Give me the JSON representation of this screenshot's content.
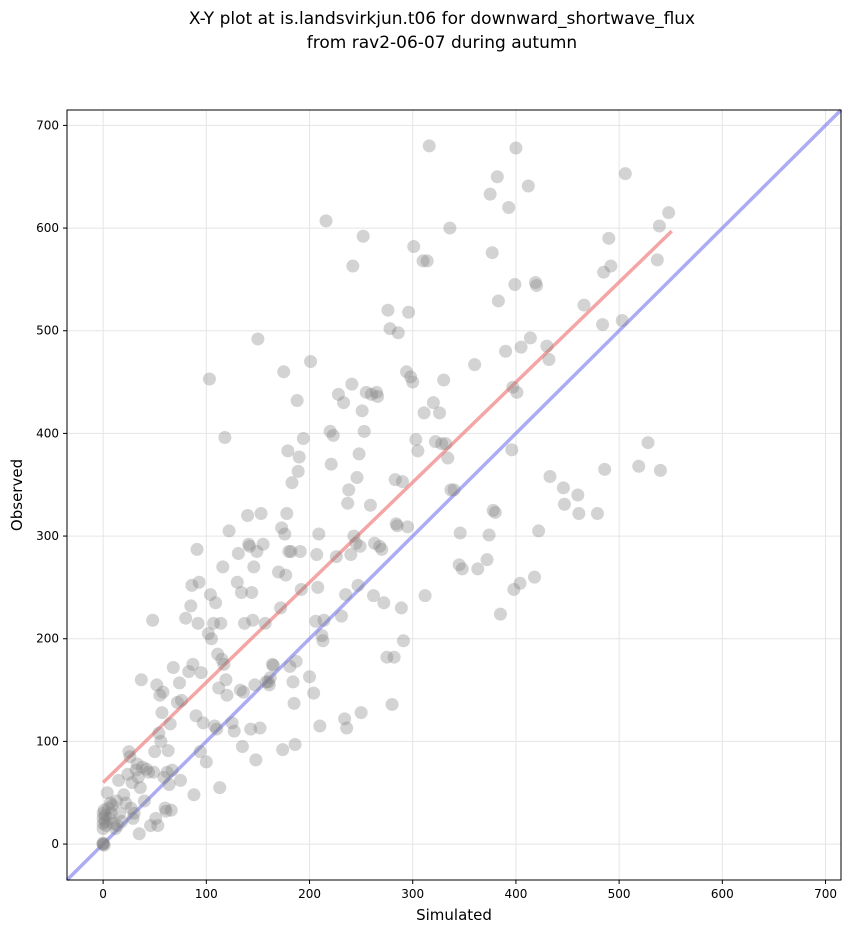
{
  "chart_data": {
    "type": "scatter",
    "title_line1": "X-Y plot at is.landsvirkjun.t06 for downward_shortwave_flux",
    "title_line2": "from rav2-06-07 during autumn",
    "xlabel": "Simulated",
    "ylabel": "Observed",
    "xlim": [
      -35,
      715
    ],
    "ylim": [
      -35,
      715
    ],
    "xticks": [
      0,
      100,
      200,
      300,
      400,
      500,
      600,
      700
    ],
    "yticks": [
      0,
      100,
      200,
      300,
      400,
      500,
      600,
      700
    ],
    "grid": true,
    "colors": {
      "points": "#808080",
      "fit_line": "#f08080",
      "one_to_one_line": "#8080f0"
    },
    "one_to_one_line": {
      "x": [
        -35,
        715
      ],
      "y": [
        -35,
        715
      ]
    },
    "fit_line": {
      "x": [
        0,
        551
      ],
      "y": [
        60,
        597
      ]
    },
    "points": [
      [
        0,
        0
      ],
      [
        0,
        0
      ],
      [
        0,
        1
      ],
      [
        1,
        -1
      ],
      [
        0,
        15
      ],
      [
        0,
        20
      ],
      [
        0,
        25
      ],
      [
        0,
        30
      ],
      [
        1,
        33
      ],
      [
        2,
        22
      ],
      [
        2,
        28
      ],
      [
        3,
        18
      ],
      [
        4,
        50
      ],
      [
        5,
        35
      ],
      [
        6,
        25
      ],
      [
        7,
        40
      ],
      [
        8,
        30
      ],
      [
        9,
        38
      ],
      [
        10,
        20
      ],
      [
        12,
        15
      ],
      [
        13,
        42
      ],
      [
        14,
        18
      ],
      [
        15,
        62
      ],
      [
        16,
        30
      ],
      [
        18,
        22
      ],
      [
        20,
        48
      ],
      [
        22,
        40
      ],
      [
        24,
        68
      ],
      [
        25,
        90
      ],
      [
        26,
        85
      ],
      [
        27,
        35
      ],
      [
        28,
        60
      ],
      [
        29,
        25
      ],
      [
        30,
        30
      ],
      [
        32,
        72
      ],
      [
        33,
        78
      ],
      [
        34,
        65
      ],
      [
        35,
        10
      ],
      [
        36,
        55
      ],
      [
        37,
        160
      ],
      [
        38,
        75
      ],
      [
        40,
        42
      ],
      [
        42,
        73
      ],
      [
        44,
        70
      ],
      [
        46,
        18
      ],
      [
        48,
        218
      ],
      [
        49,
        70
      ],
      [
        50,
        90
      ],
      [
        51,
        25
      ],
      [
        52,
        155
      ],
      [
        53,
        18
      ],
      [
        54,
        108
      ],
      [
        55,
        145
      ],
      [
        56,
        100
      ],
      [
        57,
        128
      ],
      [
        58,
        148
      ],
      [
        59,
        65
      ],
      [
        60,
        35
      ],
      [
        61,
        32
      ],
      [
        62,
        70
      ],
      [
        63,
        91
      ],
      [
        64,
        58
      ],
      [
        65,
        117
      ],
      [
        66,
        33
      ],
      [
        67,
        72
      ],
      [
        68,
        172
      ],
      [
        72,
        138
      ],
      [
        74,
        157
      ],
      [
        75,
        62
      ],
      [
        76,
        140
      ],
      [
        80,
        220
      ],
      [
        83,
        168
      ],
      [
        85,
        232
      ],
      [
        86,
        252
      ],
      [
        87,
        175
      ],
      [
        88,
        48
      ],
      [
        90,
        125
      ],
      [
        91,
        287
      ],
      [
        92,
        215
      ],
      [
        93,
        255
      ],
      [
        94,
        90
      ],
      [
        95,
        167
      ],
      [
        97,
        118
      ],
      [
        100,
        80
      ],
      [
        102,
        205
      ],
      [
        103,
        453
      ],
      [
        104,
        243
      ],
      [
        105,
        200
      ],
      [
        107,
        215
      ],
      [
        108,
        115
      ],
      [
        109,
        235
      ],
      [
        110,
        112
      ],
      [
        111,
        185
      ],
      [
        112,
        152
      ],
      [
        113,
        55
      ],
      [
        114,
        215
      ],
      [
        115,
        180
      ],
      [
        116,
        270
      ],
      [
        117,
        175
      ],
      [
        118,
        396
      ],
      [
        119,
        160
      ],
      [
        120,
        145
      ],
      [
        122,
        305
      ],
      [
        125,
        118
      ],
      [
        127,
        110
      ],
      [
        130,
        255
      ],
      [
        131,
        283
      ],
      [
        133,
        150
      ],
      [
        134,
        245
      ],
      [
        135,
        95
      ],
      [
        136,
        148
      ],
      [
        137,
        215
      ],
      [
        140,
        320
      ],
      [
        141,
        292
      ],
      [
        142,
        290
      ],
      [
        143,
        112
      ],
      [
        144,
        245
      ],
      [
        145,
        218
      ],
      [
        146,
        270
      ],
      [
        147,
        155
      ],
      [
        148,
        82
      ],
      [
        149,
        285
      ],
      [
        150,
        492
      ],
      [
        152,
        113
      ],
      [
        153,
        322
      ],
      [
        155,
        292
      ],
      [
        157,
        215
      ],
      [
        158,
        158
      ],
      [
        160,
        158
      ],
      [
        161,
        155
      ],
      [
        162,
        162
      ],
      [
        164,
        175
      ],
      [
        165,
        174
      ],
      [
        170,
        265
      ],
      [
        172,
        230
      ],
      [
        173,
        308
      ],
      [
        174,
        92
      ],
      [
        175,
        460
      ],
      [
        176,
        302
      ],
      [
        177,
        262
      ],
      [
        178,
        322
      ],
      [
        179,
        383
      ],
      [
        180,
        285
      ],
      [
        181,
        173
      ],
      [
        182,
        285
      ],
      [
        183,
        352
      ],
      [
        184,
        158
      ],
      [
        185,
        137
      ],
      [
        186,
        97
      ],
      [
        187,
        178
      ],
      [
        188,
        432
      ],
      [
        189,
        363
      ],
      [
        190,
        377
      ],
      [
        191,
        285
      ],
      [
        192,
        248
      ],
      [
        194,
        395
      ],
      [
        200,
        163
      ],
      [
        201,
        470
      ],
      [
        204,
        147
      ],
      [
        206,
        217
      ],
      [
        207,
        282
      ],
      [
        208,
        250
      ],
      [
        209,
        302
      ],
      [
        210,
        115
      ],
      [
        212,
        203
      ],
      [
        213,
        198
      ],
      [
        214,
        218
      ],
      [
        216,
        607
      ],
      [
        220,
        402
      ],
      [
        221,
        370
      ],
      [
        223,
        398
      ],
      [
        226,
        280
      ],
      [
        228,
        438
      ],
      [
        231,
        222
      ],
      [
        233,
        430
      ],
      [
        234,
        122
      ],
      [
        235,
        243
      ],
      [
        236,
        113
      ],
      [
        237,
        332
      ],
      [
        238,
        345
      ],
      [
        240,
        282
      ],
      [
        241,
        448
      ],
      [
        242,
        563
      ],
      [
        243,
        300
      ],
      [
        245,
        293
      ],
      [
        246,
        357
      ],
      [
        247,
        252
      ],
      [
        248,
        380
      ],
      [
        249,
        290
      ],
      [
        250,
        128
      ],
      [
        251,
        422
      ],
      [
        252,
        592
      ],
      [
        253,
        402
      ],
      [
        255,
        440
      ],
      [
        259,
        330
      ],
      [
        260,
        438
      ],
      [
        262,
        242
      ],
      [
        263,
        293
      ],
      [
        265,
        440
      ],
      [
        266,
        436
      ],
      [
        268,
        290
      ],
      [
        270,
        287
      ],
      [
        272,
        235
      ],
      [
        275,
        182
      ],
      [
        276,
        520
      ],
      [
        278,
        502
      ],
      [
        280,
        136
      ],
      [
        282,
        182
      ],
      [
        283,
        355
      ],
      [
        284,
        312
      ],
      [
        285,
        310
      ],
      [
        286,
        498
      ],
      [
        289,
        230
      ],
      [
        290,
        353
      ],
      [
        291,
        198
      ],
      [
        294,
        460
      ],
      [
        295,
        309
      ],
      [
        296,
        518
      ],
      [
        298,
        455
      ],
      [
        300,
        450
      ],
      [
        301,
        582
      ],
      [
        303,
        394
      ],
      [
        305,
        383
      ],
      [
        310,
        568
      ],
      [
        311,
        420
      ],
      [
        312,
        242
      ],
      [
        314,
        568
      ],
      [
        316,
        680
      ],
      [
        320,
        430
      ],
      [
        322,
        392
      ],
      [
        326,
        420
      ],
      [
        328,
        390
      ],
      [
        330,
        452
      ],
      [
        332,
        390
      ],
      [
        334,
        376
      ],
      [
        336,
        600
      ],
      [
        337,
        345
      ],
      [
        340,
        345
      ],
      [
        345,
        272
      ],
      [
        346,
        303
      ],
      [
        348,
        268
      ],
      [
        360,
        467
      ],
      [
        363,
        268
      ],
      [
        372,
        277
      ],
      [
        374,
        301
      ],
      [
        375,
        633
      ],
      [
        377,
        576
      ],
      [
        378,
        325
      ],
      [
        380,
        323
      ],
      [
        382,
        650
      ],
      [
        383,
        529
      ],
      [
        385,
        224
      ],
      [
        390,
        480
      ],
      [
        393,
        620
      ],
      [
        396,
        384
      ],
      [
        397,
        445
      ],
      [
        398,
        248
      ],
      [
        399,
        545
      ],
      [
        400,
        678
      ],
      [
        401,
        440
      ],
      [
        404,
        254
      ],
      [
        405,
        484
      ],
      [
        412,
        641
      ],
      [
        414,
        493
      ],
      [
        418,
        260
      ],
      [
        419,
        547
      ],
      [
        420,
        544
      ],
      [
        422,
        305
      ],
      [
        430,
        485
      ],
      [
        432,
        472
      ],
      [
        433,
        358
      ],
      [
        446,
        347
      ],
      [
        447,
        331
      ],
      [
        460,
        340
      ],
      [
        461,
        322
      ],
      [
        466,
        525
      ],
      [
        479,
        322
      ],
      [
        484,
        506
      ],
      [
        485,
        557
      ],
      [
        486,
        365
      ],
      [
        490,
        590
      ],
      [
        492,
        563
      ],
      [
        503,
        510
      ],
      [
        506,
        653
      ],
      [
        519,
        368
      ],
      [
        528,
        391
      ],
      [
        537,
        569
      ],
      [
        539,
        602
      ],
      [
        540,
        364
      ],
      [
        548,
        615
      ]
    ]
  }
}
